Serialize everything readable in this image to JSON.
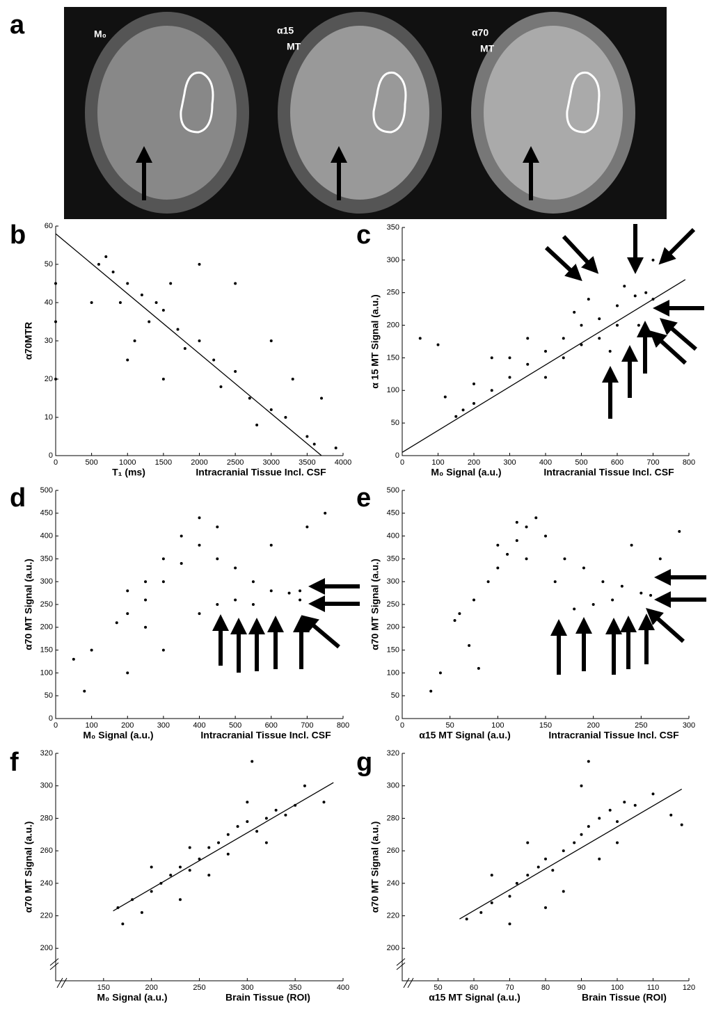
{
  "panel_a": {
    "label": "a",
    "images": [
      {
        "label": [
          "M₀"
        ]
      },
      {
        "label": [
          "α15",
          "MT"
        ]
      },
      {
        "label": [
          "α70",
          "MT"
        ]
      }
    ]
  },
  "chart_data": [
    {
      "type": "scatter",
      "panel": "b",
      "xlabel": "T₁ (ms)",
      "annotation": "Intracranial Tissue Incl. CSF",
      "ylabel": "α70MTR",
      "xlim": [
        0,
        4000
      ],
      "ylim": [
        0,
        60
      ],
      "xticks": [
        0,
        500,
        1000,
        1500,
        2000,
        2500,
        3000,
        3500,
        4000
      ],
      "yticks": [
        0,
        10,
        20,
        30,
        40,
        50,
        60
      ],
      "x": [
        600,
        800,
        1000,
        700,
        1200,
        1400,
        1500,
        1300,
        1700,
        2000,
        1800,
        2200,
        2500,
        2300,
        2700,
        3000,
        3200,
        2800,
        3500,
        3600,
        3900,
        1000,
        1100,
        500,
        2000,
        2500,
        3000,
        1500,
        1600,
        900,
        0,
        0,
        0,
        3700,
        3300
      ],
      "values": [
        50,
        48,
        45,
        52,
        42,
        40,
        38,
        35,
        33,
        30,
        28,
        25,
        22,
        18,
        15,
        12,
        10,
        8,
        5,
        3,
        2,
        25,
        30,
        40,
        50,
        45,
        30,
        20,
        45,
        40,
        20,
        35,
        45,
        15,
        20
      ],
      "fit": {
        "x": [
          0,
          3700
        ],
        "values": [
          58,
          0
        ]
      }
    },
    {
      "type": "scatter",
      "panel": "c",
      "xlabel": "M₀ Signal (a.u.)",
      "annotation": "Intracranial Tissue Incl. CSF",
      "ylabel": "α 15 MT Signal (a.u.)",
      "xlim": [
        0,
        800
      ],
      "ylim": [
        0,
        350
      ],
      "xticks": [
        0,
        100,
        200,
        300,
        400,
        500,
        600,
        700,
        800
      ],
      "yticks": [
        0,
        50,
        100,
        150,
        200,
        250,
        300,
        350
      ],
      "x": [
        150,
        170,
        200,
        250,
        300,
        350,
        400,
        450,
        500,
        550,
        600,
        650,
        680,
        400,
        450,
        500,
        550,
        300,
        350,
        600,
        620,
        700,
        520,
        480,
        250,
        50,
        100,
        120,
        580,
        660,
        700,
        200
      ],
      "values": [
        60,
        70,
        80,
        100,
        120,
        140,
        160,
        180,
        200,
        210,
        230,
        245,
        250,
        120,
        150,
        170,
        180,
        150,
        180,
        200,
        260,
        240,
        240,
        220,
        150,
        180,
        170,
        90,
        160,
        200,
        300,
        110
      ],
      "fit": {
        "x": [
          0,
          790
        ],
        "values": [
          5,
          270
        ]
      }
    },
    {
      "type": "scatter",
      "panel": "d",
      "xlabel": "M₀ Signal (a.u.)",
      "annotation": "Intracranial Tissue Incl. CSF",
      "ylabel": "α70 MT Signal (a.u.)",
      "xlim": [
        0,
        800
      ],
      "ylim": [
        0,
        500
      ],
      "xticks": [
        0,
        100,
        200,
        300,
        400,
        500,
        600,
        700,
        800
      ],
      "yticks": [
        0,
        50,
        100,
        150,
        200,
        250,
        300,
        350,
        400,
        450,
        500
      ],
      "x": [
        170,
        200,
        250,
        300,
        350,
        400,
        450,
        300,
        350,
        400,
        250,
        200,
        450,
        500,
        550,
        600,
        650,
        680,
        550,
        500,
        600,
        700,
        750,
        450,
        400,
        100,
        80,
        200,
        50,
        300,
        250,
        680
      ],
      "values": [
        210,
        230,
        260,
        300,
        340,
        380,
        420,
        350,
        400,
        440,
        300,
        280,
        350,
        330,
        300,
        280,
        275,
        260,
        250,
        260,
        380,
        420,
        450,
        250,
        230,
        150,
        60,
        100,
        130,
        150,
        200,
        280
      ]
    },
    {
      "type": "scatter",
      "panel": "e",
      "xlabel": "α15 MT Signal (a.u.)",
      "annotation": "Intracranial Tissue Incl. CSF",
      "ylabel": "α70 MT Signal (a.u.)",
      "xlim": [
        0,
        300
      ],
      "ylim": [
        0,
        500
      ],
      "xticks": [
        0,
        50,
        100,
        150,
        200,
        250,
        300
      ],
      "yticks": [
        0,
        50,
        100,
        150,
        200,
        250,
        300,
        350,
        400,
        450,
        500
      ],
      "x": [
        55,
        60,
        75,
        90,
        100,
        110,
        120,
        130,
        140,
        100,
        120,
        150,
        170,
        190,
        210,
        230,
        250,
        260,
        200,
        180,
        220,
        270,
        290,
        240,
        40,
        30,
        70,
        80,
        160,
        130
      ],
      "values": [
        215,
        230,
        260,
        300,
        330,
        360,
        390,
        420,
        440,
        380,
        430,
        400,
        350,
        330,
        300,
        290,
        275,
        270,
        250,
        240,
        260,
        350,
        410,
        380,
        100,
        60,
        160,
        110,
        300,
        350
      ]
    },
    {
      "type": "scatter",
      "panel": "f",
      "xlabel": "M₀ Signal (a.u.)",
      "annotation": "Brain Tissue (ROI)",
      "ylabel": "α70 MT Signal (a.u.)",
      "axis_break": true,
      "xlim": [
        100,
        400
      ],
      "ylim": [
        180,
        320
      ],
      "xticks": [
        150,
        200,
        250,
        300,
        350,
        400
      ],
      "yticks": [
        200,
        220,
        240,
        260,
        280,
        300,
        320
      ],
      "x": [
        165,
        180,
        190,
        200,
        210,
        220,
        230,
        240,
        250,
        260,
        270,
        280,
        290,
        300,
        310,
        320,
        330,
        340,
        350,
        280,
        260,
        240,
        300,
        320,
        200,
        170,
        360,
        380,
        305,
        230
      ],
      "values": [
        225,
        230,
        222,
        235,
        240,
        245,
        250,
        248,
        255,
        262,
        265,
        270,
        275,
        278,
        272,
        280,
        285,
        282,
        288,
        258,
        245,
        262,
        290,
        265,
        250,
        215,
        300,
        290,
        315,
        230
      ],
      "fit": {
        "x": [
          160,
          390
        ],
        "values": [
          223,
          302
        ]
      }
    },
    {
      "type": "scatter",
      "panel": "g",
      "xlabel": "α15 MT Signal (a.u.)",
      "annotation": "Brain Tissue (ROI)",
      "ylabel": "α70 MT Signal (a.u.)",
      "axis_break": true,
      "xlim": [
        40,
        120
      ],
      "ylim": [
        180,
        320
      ],
      "xticks": [
        50,
        60,
        70,
        80,
        90,
        100,
        110,
        120
      ],
      "yticks": [
        200,
        220,
        240,
        260,
        280,
        300,
        320
      ],
      "x": [
        58,
        62,
        65,
        70,
        72,
        75,
        78,
        80,
        82,
        85,
        88,
        90,
        92,
        95,
        98,
        100,
        102,
        105,
        110,
        115,
        118,
        70,
        75,
        85,
        95,
        90,
        100,
        80,
        65,
        92
      ],
      "values": [
        218,
        222,
        228,
        232,
        240,
        245,
        250,
        255,
        248,
        260,
        265,
        270,
        275,
        280,
        285,
        278,
        290,
        288,
        295,
        282,
        276,
        215,
        265,
        235,
        255,
        300,
        265,
        225,
        245,
        315
      ],
      "fit": {
        "x": [
          56,
          118
        ],
        "values": [
          218,
          298
        ]
      }
    }
  ]
}
